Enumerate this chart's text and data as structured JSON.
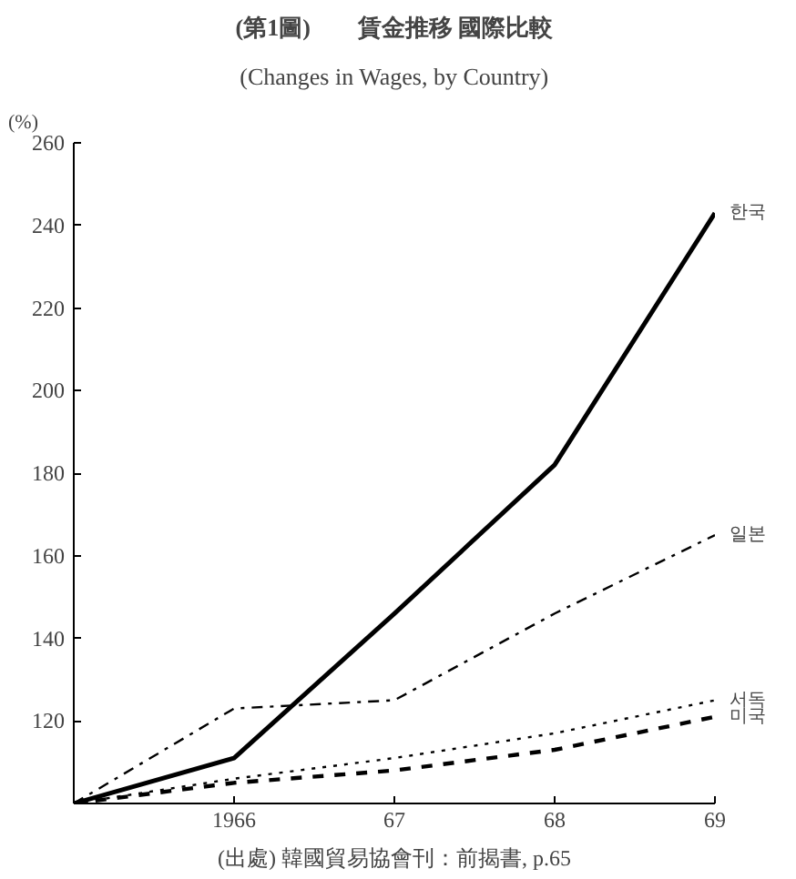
{
  "chart_data": {
    "type": "line",
    "title": "(第1圖)　　賃金推移 國際比較",
    "subtitle": "(Changes in Wages, by Country)",
    "ylabel": "(%)",
    "x": [
      1965,
      1966,
      1967,
      1968,
      1969
    ],
    "xlim": [
      1965,
      1969
    ],
    "xticks": [
      1966,
      {
        "value": 1967,
        "label": "67"
      },
      {
        "value": 1968,
        "label": "68"
      },
      {
        "value": 1969,
        "label": "69"
      }
    ],
    "ylim": [
      100,
      260
    ],
    "yticks": [
      120,
      140,
      160,
      180,
      200,
      220,
      240,
      260
    ],
    "series": [
      {
        "name": "한국",
        "color": "#000000",
        "line_style": "solid",
        "values": [
          100,
          111,
          146,
          182,
          243
        ]
      },
      {
        "name": "일본",
        "color": "#000000",
        "line_style": "dashdot",
        "values": [
          100,
          123,
          125,
          146,
          165
        ]
      },
      {
        "name": "서독",
        "color": "#000000",
        "line_style": "dotted",
        "values": [
          100,
          106,
          111,
          117,
          125
        ]
      },
      {
        "name": "미국",
        "color": "#000000",
        "line_style": "dashed",
        "values": [
          100,
          105,
          108,
          113,
          121
        ]
      }
    ],
    "annotations": [
      "(出處) 韓國貿易協會刊：前揭書, p.65"
    ],
    "grid": false,
    "marker": "none"
  }
}
